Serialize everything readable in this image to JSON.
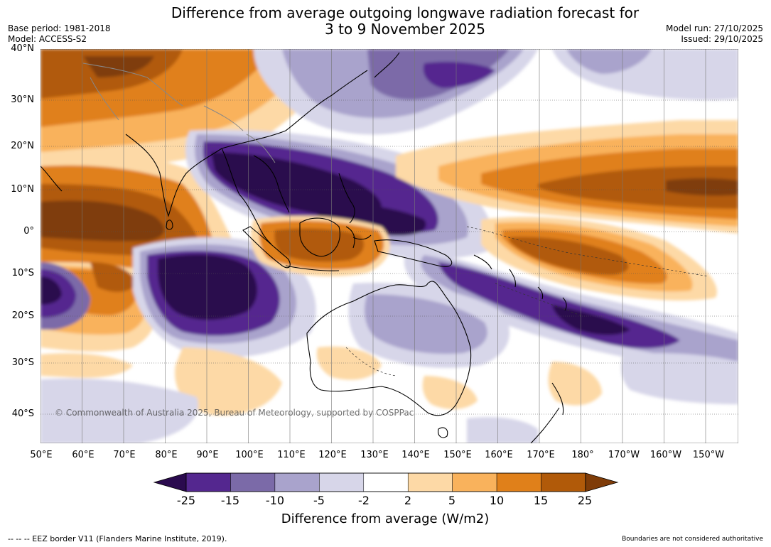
{
  "title": {
    "line1": "Difference from average outgoing longwave radiation forecast for",
    "line2": "3 to 9 November 2025"
  },
  "meta": {
    "base_period": "Base period: 1981-2018",
    "model": "Model: ACCESS-S2",
    "model_run": "Model run: 27/10/2025",
    "issued": "Issued: 29/10/2025"
  },
  "axes": {
    "lat_labels": [
      "40°N",
      "30°N",
      "20°N",
      "10°N",
      "0°",
      "10°S",
      "20°S",
      "30°S",
      "40°S"
    ],
    "lon_labels": [
      "50°E",
      "60°E",
      "70°E",
      "80°E",
      "90°E",
      "100°E",
      "110°E",
      "120°E",
      "130°E",
      "140°E",
      "150°E",
      "160°E",
      "170°E",
      "180°",
      "170°W",
      "160°W",
      "150°W"
    ]
  },
  "copyright": "© Commonwealth of Australia 2025, Bureau of Meteorology, supported by COSPPac",
  "colorbar": {
    "labels": [
      "-25",
      "-15",
      "-10",
      "-5",
      "-2",
      "2",
      "5",
      "10",
      "15",
      "25"
    ],
    "colors": [
      "#2a0a4e",
      "#54278f",
      "#7b6aa8",
      "#a9a3cc",
      "#d7d6e9",
      "#ffffff",
      "#fdd9a6",
      "#f9b25c",
      "#e0801a",
      "#b15a09",
      "#7f3c08"
    ],
    "title": "Difference from average (W/m2)"
  },
  "footer": {
    "eez": "--  --  -- EEZ border V11 (Flanders Marine Institute, 2019).",
    "disclaimer": "Boundaries are not considered authoritative"
  }
}
